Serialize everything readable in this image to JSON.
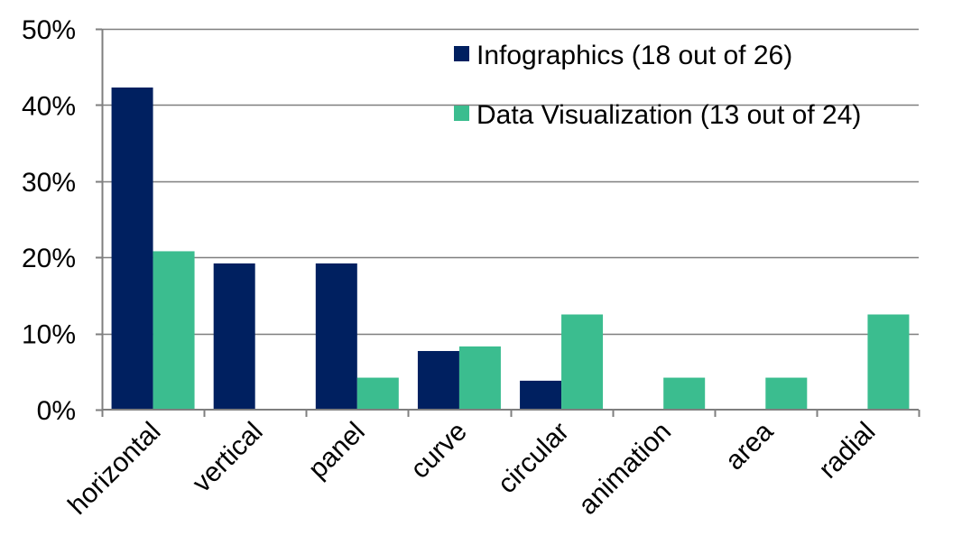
{
  "chart_data": {
    "type": "bar",
    "categories": [
      "horizontal",
      "vertical",
      "panel",
      "curve",
      "circular",
      "animation",
      "area",
      "radial"
    ],
    "series": [
      {
        "name": "Infographics (18 out of 26)",
        "color": "#002060",
        "values": [
          42.3,
          19.2,
          19.2,
          7.7,
          3.8,
          0,
          0,
          0
        ]
      },
      {
        "name": "Data Visualization (13 out of 24)",
        "color": "#3bbd8f",
        "values": [
          20.8,
          0,
          4.2,
          8.3,
          12.5,
          4.2,
          4.2,
          12.5
        ]
      }
    ],
    "ylim": [
      0,
      50
    ],
    "yticks": [
      0,
      10,
      20,
      30,
      40,
      50
    ],
    "ytick_labels": [
      "0%",
      "10%",
      "20%",
      "30%",
      "40%",
      "50%"
    ],
    "grid": true,
    "legend_position": "top-right",
    "title": "",
    "xlabel": "",
    "ylabel": ""
  }
}
